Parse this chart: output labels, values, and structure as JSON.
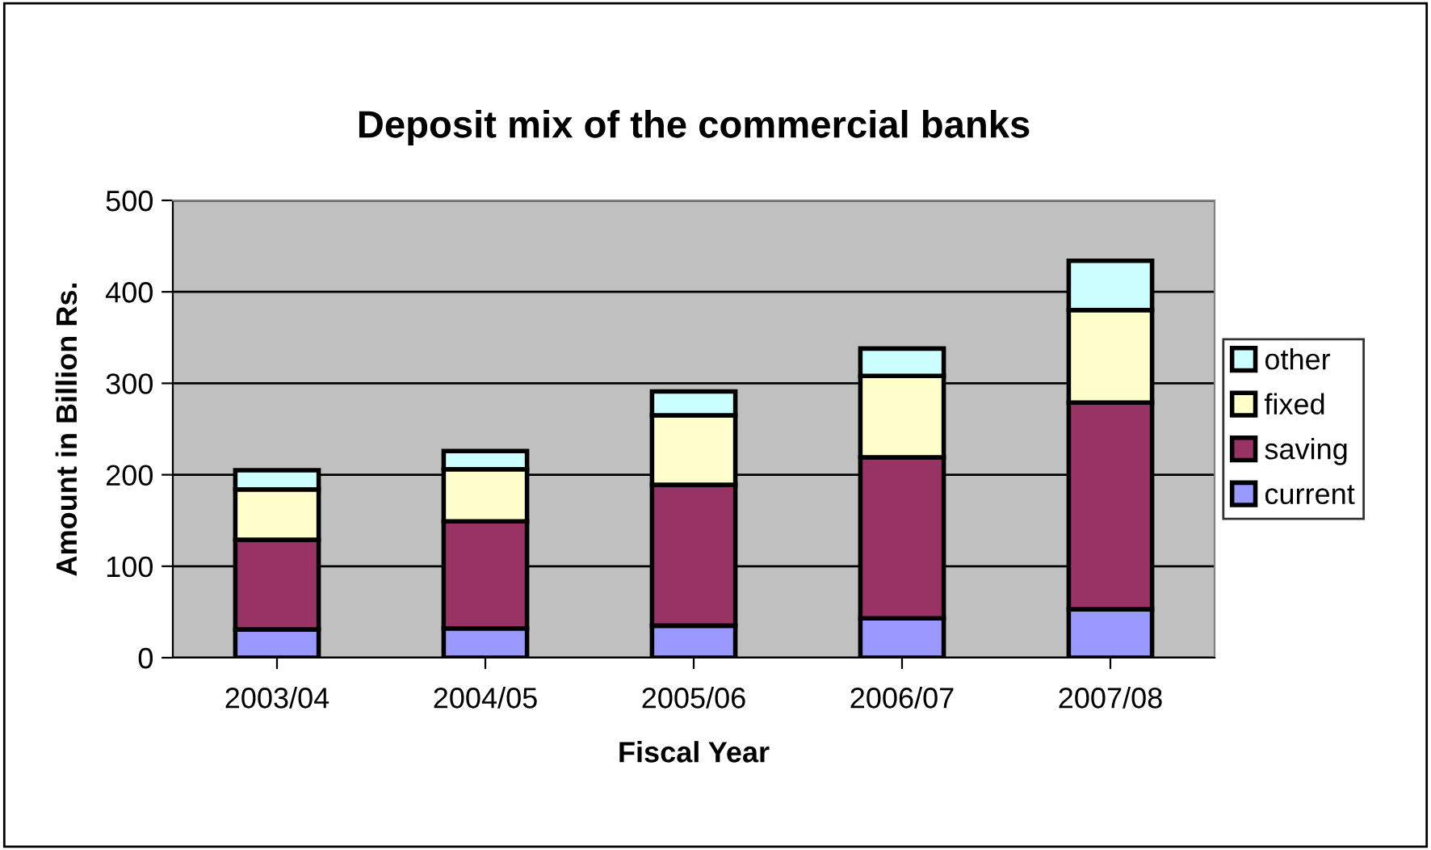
{
  "chart_data": {
    "type": "bar",
    "stacked": true,
    "title": "Deposit mix of the commercial banks",
    "xlabel": "Fiscal Year",
    "ylabel": "Amount in Billion Rs.",
    "categories": [
      "2003/04",
      "2004/05",
      "2005/06",
      "2006/07",
      "2007/08"
    ],
    "series": [
      {
        "name": "current",
        "color": "#9999ff",
        "values": [
          31,
          32,
          35,
          43,
          53
        ]
      },
      {
        "name": "saving",
        "color": "#993366",
        "values": [
          98,
          117,
          154,
          176,
          226
        ]
      },
      {
        "name": "fixed",
        "color": "#ffffcc",
        "values": [
          55,
          57,
          76,
          89,
          101
        ]
      },
      {
        "name": "other",
        "color": "#ccffff",
        "values": [
          21,
          20,
          26,
          30,
          54
        ]
      }
    ],
    "ylim": [
      0,
      500
    ],
    "yticks": [
      0,
      100,
      200,
      300,
      400,
      500
    ],
    "grid": "y",
    "legend": "right"
  }
}
